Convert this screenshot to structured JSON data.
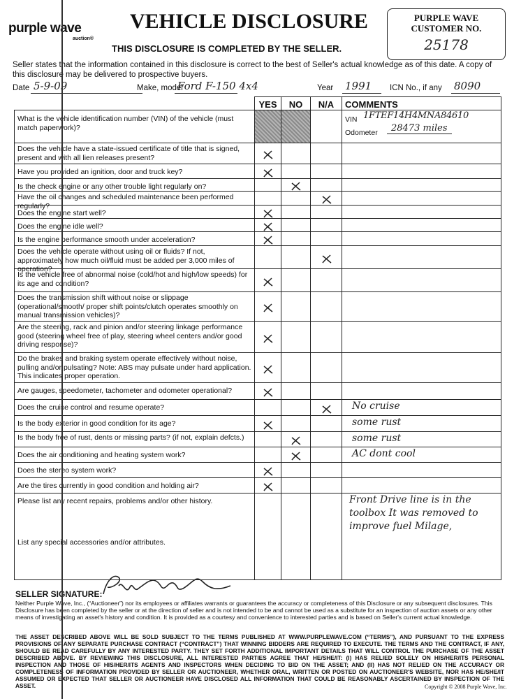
{
  "header": {
    "logo": "purple wave",
    "logo_sub": "auction®",
    "title": "VEHICLE DISCLOSURE",
    "subtitle": "THIS DISCLOSURE IS COMPLETED BY THE SELLER.",
    "customer_box": {
      "label": "PURPLE WAVE CUSTOMER NO.",
      "value": "25178"
    }
  },
  "intro": "Seller states that the information contained in this disclosure is correct to the best of Seller's actual knowledge as of this date. A copy of this disclosure may be delivered to prospective buyers.",
  "fields": [
    {
      "label": "Date",
      "value": "5-9-09"
    },
    {
      "label": "Make, model",
      "value": "Ford F-150 4x4"
    },
    {
      "label": "Year",
      "value": "1991"
    },
    {
      "label": "ICN No., if any",
      "value": "8090"
    }
  ],
  "table": {
    "columns": [
      "YES",
      "NO",
      "N/A",
      "COMMENTS"
    ],
    "vin_row": {
      "question": "What is the vehicle identification number (VIN) of the vehicle (must match paperwork)?",
      "vin_label": "VIN",
      "vin": "1FTEF14H4MNA84610",
      "odometer_label": "Odometer",
      "odometer": "28473 miles"
    },
    "rows": [
      {
        "question": "Does the vehicle have a state-issued certificate of title that is signed, present and with all lien releases present?",
        "mark": "yes"
      },
      {
        "question": "Have you provided an ignition, door and truck key?",
        "mark": "yes"
      },
      {
        "question": "Is the check engine or any other trouble light regularly on?",
        "mark": "no"
      },
      {
        "question": "Have the oil changes and scheduled maintenance been performed regularly?",
        "mark": "na"
      },
      {
        "question": "Does the engine start well?",
        "mark": "yes"
      },
      {
        "question": "Does the engine idle well?",
        "mark": "yes"
      },
      {
        "question": "Is the engine performance smooth under acceleration?",
        "mark": "yes"
      },
      {
        "question": "Does the vehicle operate without using oil or fluids? If not, approximately how much oil/fluid must be added per 3,000 miles of operation?",
        "mark": "na"
      },
      {
        "question": "Is the vehicle free of abnormal noise (cold/hot and high/low speeds) for its age and condition?",
        "mark": "yes"
      },
      {
        "question": "Does the transmission shift without noise or slippage (operational/smooth/ proper shift points/clutch operates smoothly on manual transmission vehicles)?",
        "mark": "yes"
      },
      {
        "question": "Are the steering, rack and pinion and/or steering linkage performance good (steering wheel free of play, steering wheel centers and/or good driving response)?",
        "mark": "yes"
      },
      {
        "question": "Do the brakes and braking system operate effectively without noise, pulling and/or pulsating? Note: ABS may pulsate under hard application. This indicates proper operation.",
        "mark": "yes"
      },
      {
        "question": "Are gauges, speedometer, tachometer and odometer operational?",
        "mark": "yes"
      },
      {
        "question": "Does the cruise control and resume operate?",
        "mark": "na",
        "comment": "No cruise"
      },
      {
        "question": "Is the body exterior in good condition for its age?",
        "mark": "yes",
        "comment": "some rust"
      },
      {
        "question": "Is the body free of rust, dents or missing parts? (if not, explain defcts.)",
        "mark": "no",
        "comment": "some rust"
      },
      {
        "question": "Does the air conditioning and heating system work?",
        "mark": "no",
        "comment": "AC dont cool"
      },
      {
        "question": "Does the stereo system work?",
        "mark": "yes"
      },
      {
        "question": "Are the tires currently in good condition and holding air?",
        "mark": "yes"
      },
      {
        "question": "Please list any recent repairs, problems and/or other history.",
        "comment": "Front Drive line is in the toolbox It was removed to improve fuel Milage,"
      },
      {
        "question": "List any special accessories and/or attributes."
      }
    ]
  },
  "signature_label": "SELLER SIGNATURE:",
  "disclaimer": "Neither Purple Wave, Inc., (“Auctioneer”) nor its employees or affiliates warrants or guarantees the accuracy or completeness of this Disclosure or any subsequent disclosures. This Disclosure has been completed by the seller or at the direction of seller and is not intended to be and cannot be used as a substitute for an inspection of auction assets or any other means of investigating an asset's history and condition. It is provided as a courtesy and convenience to interested parties and is based on Seller's current actual knowledge.",
  "terms": "THE ASSET DESCRIBED ABOVE WILL BE SOLD SUBJECT TO THE TERMS PUBLISHED AT WWW.PURPLEWAVE.COM (“TERMS”), AND PURSUANT TO THE EXPRESS PROVISIONS OF ANY SEPARATE PURCHASE CONTRACT (“CONTRACT”) THAT WINNING BIDDERS ARE REQUIRED TO EXECUTE. THE TERMS AND THE CONTRACT, IF ANY, SHOULD BE READ CAREFULLY BY ANY INTERESTED PARTY. THEY SET FORTH ADDITIONAL IMPORTANT DETAILS THAT WILL CONTROL THE PURCHASE OF THE ASSET DESCRIBED ABOVE. BY REVIEWING THIS DISCLOSURE, ALL INTERESTED PARTIES AGREE THAT HE/SHE/IT: (I) HAS RELIED SOLELY ON HIS/HER/ITS PERSONAL INSPECTION AND THOSE OF HIS/HER/ITS AGENTS AND INSPECTORS WHEN DECIDING TO BID ON THE ASSET; AND (II) HAS NOT RELIED ON THE ACCURACY OR COMPLETENESS OF INFORMATION PROVIDED BY SELLER OR AUCTIONEER, WHETHER ORAL, WRITTEN OR POSTED ON AUCTIONEER'S WEBSITE, NOR HAS HE/SHE/IT ASSUMED OR EXPECTED THAT SELLER OR AUCTIONEER HAVE DISCLOSED ALL INFORMATION THAT COULD BE REASONABLY ASCERTAINED BY INSPECTION OF THE ASSET.",
  "copyright": "Copyright © 2008 Purple Wave, Inc."
}
